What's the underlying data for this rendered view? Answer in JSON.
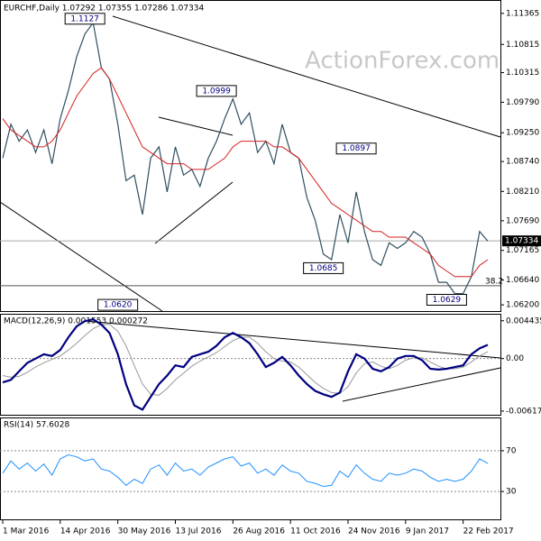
{
  "chart_data": [
    {
      "type": "line",
      "title": "EURCHF,Daily 1.07292 1.07355 1.07286 1.07334",
      "watermark": "ActionForex.com",
      "categories": [
        "1 Mar 2016",
        null,
        null,
        null,
        null,
        null,
        null,
        "14 Apr 2016",
        null,
        null,
        null,
        null,
        null,
        null,
        "30 May 2016",
        null,
        null,
        null,
        null,
        null,
        null,
        "13 Jul 2016",
        null,
        null,
        null,
        null,
        null,
        null,
        "26 Aug 2016",
        null,
        null,
        null,
        null,
        null,
        null,
        "11 Oct 2016",
        null,
        null,
        null,
        null,
        null,
        null,
        "24 Nov 2016",
        null,
        null,
        null,
        null,
        null,
        null,
        "9 Jan 2017",
        null,
        null,
        null,
        null,
        null,
        null,
        "22 Feb 2017",
        null,
        null,
        null
      ],
      "series": [
        {
          "name": "EURCHF",
          "color": "#2f4f5f",
          "values": [
            1.088,
            1.094,
            1.091,
            1.093,
            1.089,
            1.093,
            1.087,
            1.095,
            1.1,
            1.106,
            1.11,
            1.112,
            1.104,
            1.102,
            1.094,
            1.084,
            1.085,
            1.078,
            1.088,
            1.09,
            1.082,
            1.09,
            1.085,
            1.086,
            1.083,
            1.088,
            1.091,
            1.095,
            1.0985,
            1.094,
            1.096,
            1.089,
            1.091,
            1.087,
            1.094,
            1.089,
            1.088,
            1.081,
            1.077,
            1.071,
            1.07,
            1.078,
            1.073,
            1.082,
            1.075,
            1.07,
            1.069,
            1.073,
            1.072,
            1.073,
            1.075,
            1.074,
            1.071,
            1.066,
            1.066,
            1.064,
            1.064,
            1.067,
            1.075,
            1.0733
          ]
        },
        {
          "name": "MA",
          "color": "#d42020",
          "values": [
            1.095,
            1.093,
            1.092,
            1.091,
            1.09,
            1.09,
            1.091,
            1.093,
            1.096,
            1.099,
            1.101,
            1.103,
            1.104,
            1.102,
            1.099,
            1.096,
            1.093,
            1.09,
            1.089,
            1.088,
            1.087,
            1.087,
            1.087,
            1.086,
            1.086,
            1.086,
            1.087,
            1.088,
            1.09,
            1.091,
            1.091,
            1.091,
            1.091,
            1.09,
            1.09,
            1.089,
            1.088,
            1.086,
            1.084,
            1.082,
            1.08,
            1.079,
            1.078,
            1.077,
            1.076,
            1.075,
            1.075,
            1.074,
            1.074,
            1.074,
            1.073,
            1.072,
            1.071,
            1.069,
            1.068,
            1.067,
            1.067,
            1.067,
            1.069,
            1.07
          ]
        }
      ],
      "ylim": [
        1.0609,
        1.1157
      ],
      "yticks": [
        1.11365,
        1.10815,
        1.10315,
        {
          "value": 1.0979,
          "label": "1.09790"
        },
        {
          "value": 1.0925,
          "label": "1.09250"
        },
        {
          "value": 1.0874,
          "label": "1.08740"
        },
        {
          "value": 1.0821,
          "label": "1.08210"
        },
        {
          "value": 1.0769,
          "label": "1.07690"
        },
        1.07165,
        {
          "value": 1.0664,
          "label": "1.06640"
        },
        {
          "value": 1.062,
          "label": "1.06200"
        }
      ],
      "current": 1.07334,
      "fib_level": {
        "label": "38.2",
        "value": 1.0654
      },
      "annotations": [
        {
          "text": "1.1127",
          "value": 1.1127,
          "at": 10
        },
        {
          "text": "1.0999",
          "value": 1.0999,
          "at": 26
        },
        {
          "text": "1.0897",
          "value": 1.0897,
          "at": 43
        },
        {
          "text": "1.0685",
          "value": 1.0685,
          "at": 39
        },
        {
          "text": "1.0629",
          "value": 1.0629,
          "at": 54
        },
        {
          "text": "1.0620",
          "value": 1.062,
          "at": 14
        }
      ]
    },
    {
      "type": "macd",
      "title": "MACD(12,26,9) 0.001553 0.000272",
      "series": [
        {
          "name": "MACD",
          "color": "#000080",
          "values": [
            -0.0028,
            -0.0025,
            -0.0015,
            -0.0005,
            0,
            0.0005,
            0.0003,
            0.001,
            0.0025,
            0.0038,
            0.0044,
            0.0046,
            0.004,
            0.003,
            0.0005,
            -0.003,
            -0.0055,
            -0.006,
            -0.0045,
            -0.003,
            -0.002,
            -0.0008,
            -0.001,
            0.0002,
            0.0005,
            0.0008,
            0.0015,
            0.0025,
            0.003,
            0.0025,
            0.0018,
            0.0005,
            -0.001,
            -0.0005,
            0.0002,
            -0.0008,
            -0.002,
            -0.003,
            -0.0038,
            -0.0042,
            -0.0045,
            -0.004,
            -0.0015,
            0.0005,
            0,
            -0.0012,
            -0.0015,
            -0.001,
            0,
            0.0003,
            0.0003,
            -0.0002,
            -0.0012,
            -0.0013,
            -0.0012,
            -0.001,
            -0.0008,
            0.0005,
            0.0012,
            0.0016
          ]
        },
        {
          "name": "Signal",
          "color": "#999999",
          "values": [
            -0.002,
            -0.0022,
            -0.0021,
            -0.0016,
            -0.001,
            -0.0005,
            -0.0001,
            0.0003,
            0.001,
            0.0018,
            0.0027,
            0.0035,
            0.004,
            0.004,
            0.0032,
            0.0015,
            -0.0008,
            -0.003,
            -0.0042,
            -0.0043,
            -0.0035,
            -0.0025,
            -0.0017,
            -0.0009,
            -0.0003,
            0.0002,
            0.0007,
            0.0014,
            0.0021,
            0.0025,
            0.0025,
            0.0018,
            0.0008,
            0,
            -0.0003,
            -0.0004,
            -0.001,
            -0.0019,
            -0.0028,
            -0.0035,
            -0.004,
            -0.0041,
            -0.0033,
            -0.0017,
            -0.0006,
            -0.0004,
            -0.0009,
            -0.0012,
            -0.0008,
            -0.0002,
            0.0001,
            0.0001,
            -0.0004,
            -0.0009,
            -0.0012,
            -0.0012,
            -0.001,
            -0.0004,
            0.0003,
            0.0008
          ]
        }
      ],
      "ylim": [
        -0.0066,
        0.00515
      ],
      "yticks": [
        0.004435,
        {
          "value": 0,
          "label": "0.00"
        },
        -0.00617
      ]
    },
    {
      "type": "rsi",
      "title": "RSI(14) 57.6028",
      "series": [
        {
          "name": "RSI",
          "color": "#1e90ff",
          "values": [
            48,
            60,
            52,
            58,
            50,
            57,
            46,
            62,
            66,
            64,
            60,
            62,
            52,
            50,
            44,
            36,
            42,
            38,
            52,
            56,
            46,
            58,
            50,
            52,
            46,
            54,
            58,
            62,
            64,
            55,
            58,
            48,
            52,
            46,
            56,
            50,
            48,
            40,
            38,
            35,
            36,
            50,
            44,
            56,
            48,
            42,
            40,
            48,
            46,
            48,
            52,
            50,
            44,
            40,
            42,
            40,
            42,
            50,
            62,
            57.6
          ]
        }
      ],
      "ylim": [
        0,
        100
      ],
      "yticks": [
        70,
        30
      ]
    }
  ]
}
